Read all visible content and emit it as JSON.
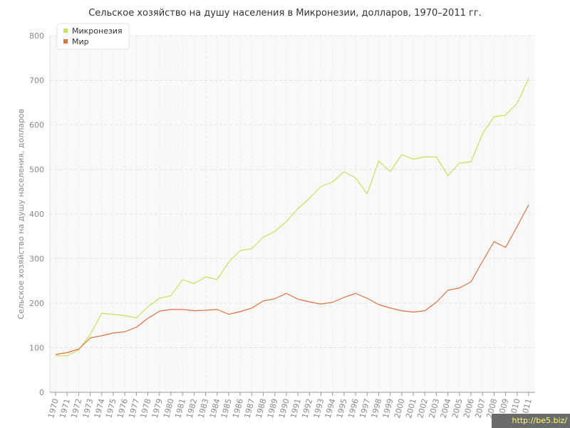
{
  "chart_data": {
    "type": "line",
    "title": "Сельское хозяйство на душу населения в Микронезии, долларов, 1970–2011 гг.",
    "xlabel": "",
    "ylabel": "Сельское хозяйство на душу населения, долларов",
    "ylim": [
      0,
      800
    ],
    "yticks": [
      "0",
      "100",
      "200",
      "300",
      "400",
      "500",
      "600",
      "700",
      "800"
    ],
    "grid": true,
    "legend_position": "top-left",
    "x": [
      "1970",
      "1971",
      "1972",
      "1973",
      "1974",
      "1975",
      "1976",
      "1977",
      "1978",
      "1979",
      "1980",
      "1981",
      "1982",
      "1983",
      "1984",
      "1985",
      "1986",
      "1987",
      "1988",
      "1989",
      "1990",
      "1991",
      "1992",
      "1993",
      "1994",
      "1995",
      "1996",
      "1997",
      "1998",
      "1999",
      "2000",
      "2001",
      "2002",
      "2003",
      "2004",
      "2005",
      "2006",
      "2007",
      "2008",
      "2009",
      "2010",
      "2011"
    ],
    "series": [
      {
        "name": "Микронезия",
        "color": "#c8e05a",
        "values": [
          82,
          82,
          95,
          130,
          177,
          175,
          172,
          167,
          192,
          211,
          217,
          253,
          244,
          259,
          253,
          292,
          318,
          322,
          348,
          361,
          383,
          412,
          435,
          462,
          472,
          495,
          481,
          445,
          519,
          495,
          533,
          523,
          528,
          528,
          486,
          514,
          517,
          580,
          618,
          622,
          648,
          704
        ]
      },
      {
        "name": "Мир",
        "color": "#e07040",
        "values": [
          85,
          89,
          97,
          122,
          127,
          133,
          136,
          146,
          166,
          182,
          186,
          186,
          183,
          184,
          186,
          175,
          181,
          189,
          205,
          210,
          222,
          209,
          203,
          198,
          202,
          213,
          222,
          211,
          197,
          189,
          183,
          180,
          183,
          202,
          229,
          234,
          248,
          294,
          338,
          325,
          372,
          421
        ]
      }
    ]
  },
  "watermark": "http://be5.biz/"
}
